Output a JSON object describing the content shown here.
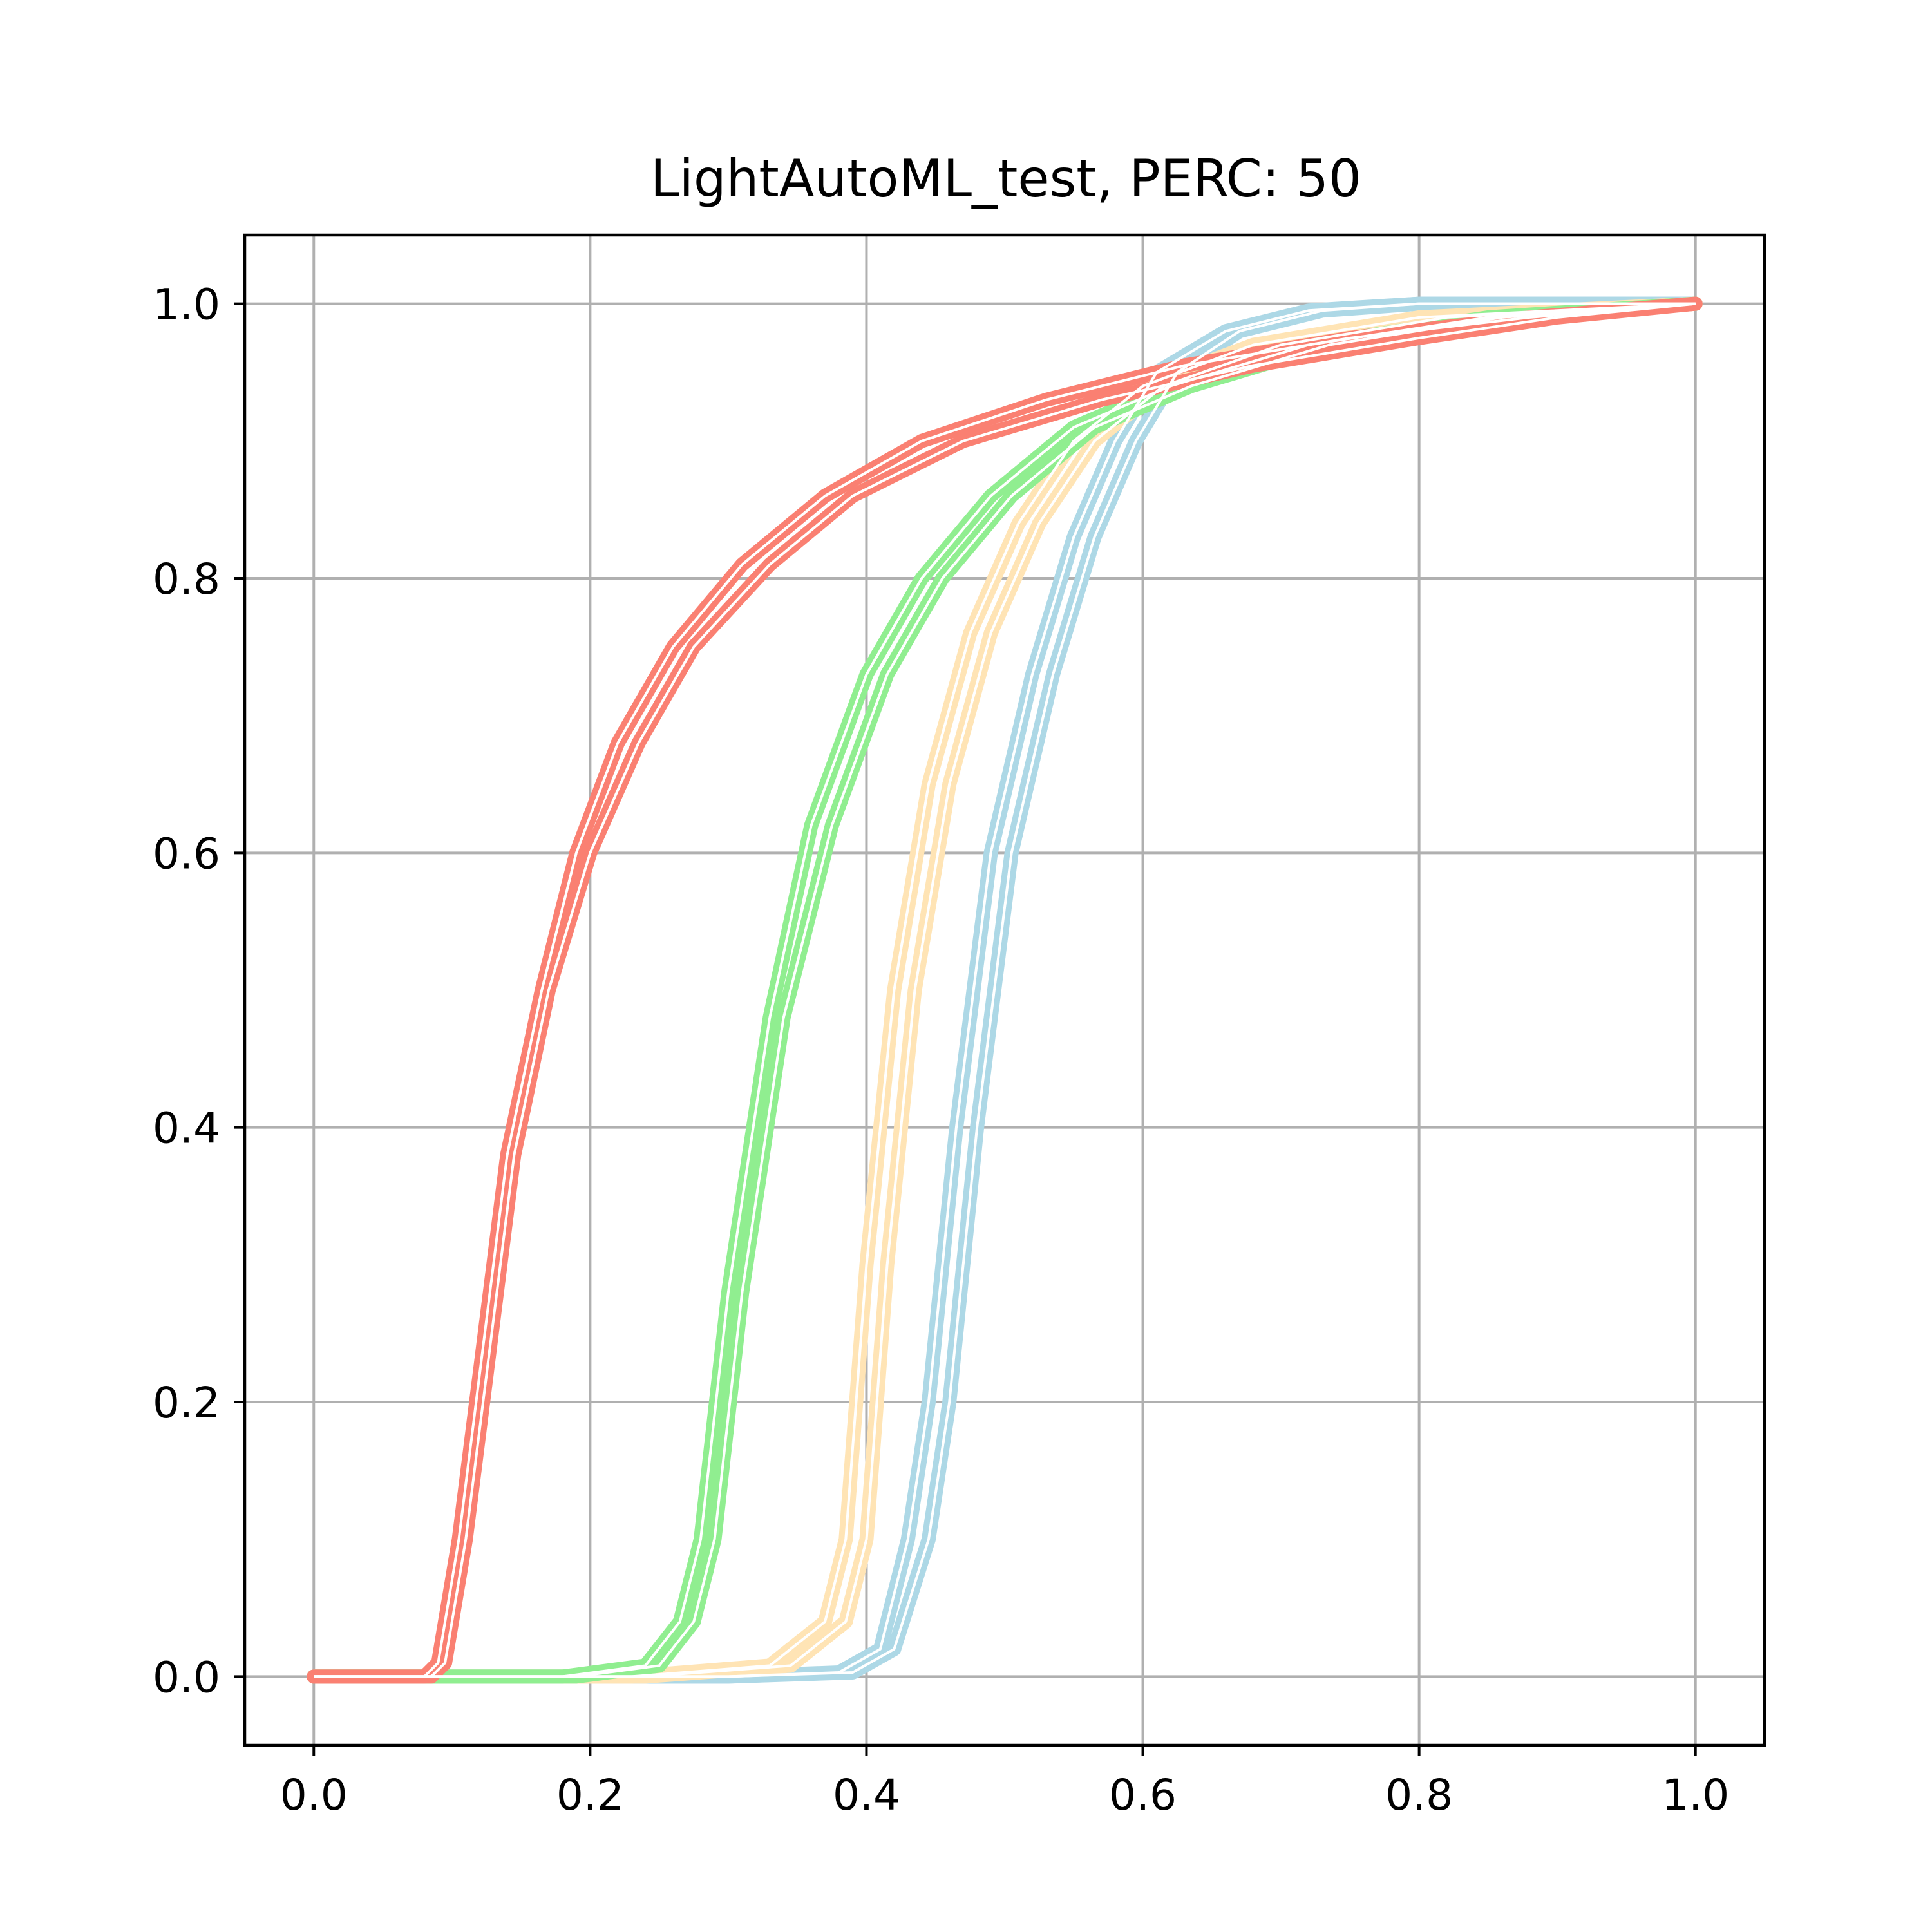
{
  "chart_data": {
    "type": "line",
    "title": "LightAutoML_test, PERC: 50",
    "xlabel": "",
    "ylabel": "",
    "xlim": [
      -0.05,
      1.05
    ],
    "ylim": [
      -0.05,
      1.05
    ],
    "x_ticks": [
      "0.0",
      "0.2",
      "0.4",
      "0.6",
      "0.8",
      "1.0"
    ],
    "y_ticks": [
      "0.0",
      "0.2",
      "0.4",
      "0.6",
      "0.8",
      "1.0"
    ],
    "grid": true,
    "legend": "none",
    "series_colors": {
      "red": "#fa8072",
      "green": "#90ee90",
      "orange": "#ffe4b5",
      "blue": "#add8e6"
    },
    "series": [
      {
        "color": "#add8e6",
        "points": [
          [
            0,
            0
          ],
          [
            0.3,
            0
          ],
          [
            0.38,
            0.003
          ],
          [
            0.41,
            0.02
          ],
          [
            0.43,
            0.1
          ],
          [
            0.445,
            0.2
          ],
          [
            0.465,
            0.4
          ],
          [
            0.49,
            0.6
          ],
          [
            0.52,
            0.73
          ],
          [
            0.55,
            0.83
          ],
          [
            0.58,
            0.9
          ],
          [
            0.61,
            0.95
          ],
          [
            0.66,
            0.98
          ],
          [
            0.72,
            0.995
          ],
          [
            0.8,
            1.0
          ],
          [
            1.0,
            1.0
          ]
        ]
      },
      {
        "color": "#add8e6",
        "points": [
          [
            0,
            0
          ],
          [
            0.3,
            0
          ],
          [
            0.39,
            0.003
          ],
          [
            0.42,
            0.02
          ],
          [
            0.445,
            0.1
          ],
          [
            0.46,
            0.2
          ],
          [
            0.48,
            0.4
          ],
          [
            0.505,
            0.6
          ],
          [
            0.535,
            0.73
          ],
          [
            0.565,
            0.83
          ],
          [
            0.595,
            0.9
          ],
          [
            0.625,
            0.95
          ],
          [
            0.67,
            0.98
          ],
          [
            0.73,
            0.995
          ],
          [
            0.8,
            1.0
          ],
          [
            1.0,
            1.0
          ]
        ]
      },
      {
        "color": "#ffe4b5",
        "points": [
          [
            0,
            0
          ],
          [
            0.23,
            0
          ],
          [
            0.33,
            0.008
          ],
          [
            0.37,
            0.04
          ],
          [
            0.385,
            0.1
          ],
          [
            0.4,
            0.3
          ],
          [
            0.42,
            0.5
          ],
          [
            0.445,
            0.65
          ],
          [
            0.475,
            0.76
          ],
          [
            0.51,
            0.84
          ],
          [
            0.55,
            0.9
          ],
          [
            0.6,
            0.94
          ],
          [
            0.68,
            0.97
          ],
          [
            0.8,
            0.99
          ],
          [
            1.0,
            1.0
          ]
        ]
      },
      {
        "color": "#ffe4b5",
        "points": [
          [
            0,
            0
          ],
          [
            0.24,
            0
          ],
          [
            0.345,
            0.008
          ],
          [
            0.385,
            0.04
          ],
          [
            0.4,
            0.1
          ],
          [
            0.415,
            0.3
          ],
          [
            0.435,
            0.5
          ],
          [
            0.46,
            0.65
          ],
          [
            0.49,
            0.76
          ],
          [
            0.525,
            0.84
          ],
          [
            0.565,
            0.9
          ],
          [
            0.615,
            0.94
          ],
          [
            0.7,
            0.97
          ],
          [
            0.82,
            0.99
          ],
          [
            1.0,
            1.0
          ]
        ]
      },
      {
        "color": "#90ee90",
        "points": [
          [
            0,
            0
          ],
          [
            0.18,
            0
          ],
          [
            0.24,
            0.008
          ],
          [
            0.265,
            0.04
          ],
          [
            0.28,
            0.1
          ],
          [
            0.3,
            0.28
          ],
          [
            0.33,
            0.48
          ],
          [
            0.36,
            0.62
          ],
          [
            0.4,
            0.73
          ],
          [
            0.44,
            0.8
          ],
          [
            0.49,
            0.86
          ],
          [
            0.55,
            0.91
          ],
          [
            0.62,
            0.94
          ],
          [
            0.72,
            0.97
          ],
          [
            0.85,
            0.99
          ],
          [
            1.0,
            1.0
          ]
        ]
      },
      {
        "color": "#90ee90",
        "points": [
          [
            0,
            0
          ],
          [
            0.19,
            0
          ],
          [
            0.25,
            0.008
          ],
          [
            0.275,
            0.04
          ],
          [
            0.29,
            0.1
          ],
          [
            0.31,
            0.28
          ],
          [
            0.34,
            0.48
          ],
          [
            0.375,
            0.62
          ],
          [
            0.415,
            0.73
          ],
          [
            0.455,
            0.8
          ],
          [
            0.505,
            0.86
          ],
          [
            0.565,
            0.91
          ],
          [
            0.635,
            0.94
          ],
          [
            0.735,
            0.97
          ],
          [
            0.86,
            0.99
          ],
          [
            1.0,
            1.0
          ]
        ]
      },
      {
        "color": "#fa8072",
        "points": [
          [
            0,
            0
          ],
          [
            0.08,
            0
          ],
          [
            0.09,
            0.01
          ],
          [
            0.105,
            0.1
          ],
          [
            0.12,
            0.22
          ],
          [
            0.14,
            0.38
          ],
          [
            0.165,
            0.5
          ],
          [
            0.19,
            0.6
          ],
          [
            0.22,
            0.68
          ],
          [
            0.26,
            0.75
          ],
          [
            0.31,
            0.81
          ],
          [
            0.37,
            0.86
          ],
          [
            0.44,
            0.9
          ],
          [
            0.53,
            0.93
          ],
          [
            0.63,
            0.955
          ],
          [
            0.75,
            0.975
          ],
          [
            0.88,
            0.99
          ],
          [
            1.0,
            1.0
          ]
        ]
      },
      {
        "color": "#fa8072",
        "points": [
          [
            0,
            0
          ],
          [
            0.085,
            0
          ],
          [
            0.095,
            0.01
          ],
          [
            0.11,
            0.1
          ],
          [
            0.125,
            0.22
          ],
          [
            0.145,
            0.38
          ],
          [
            0.17,
            0.5
          ],
          [
            0.2,
            0.6
          ],
          [
            0.235,
            0.68
          ],
          [
            0.275,
            0.75
          ],
          [
            0.33,
            0.81
          ],
          [
            0.39,
            0.86
          ],
          [
            0.47,
            0.9
          ],
          [
            0.57,
            0.93
          ],
          [
            0.68,
            0.955
          ],
          [
            0.8,
            0.975
          ],
          [
            0.9,
            0.99
          ],
          [
            1.0,
            1.0
          ]
        ]
      }
    ]
  }
}
